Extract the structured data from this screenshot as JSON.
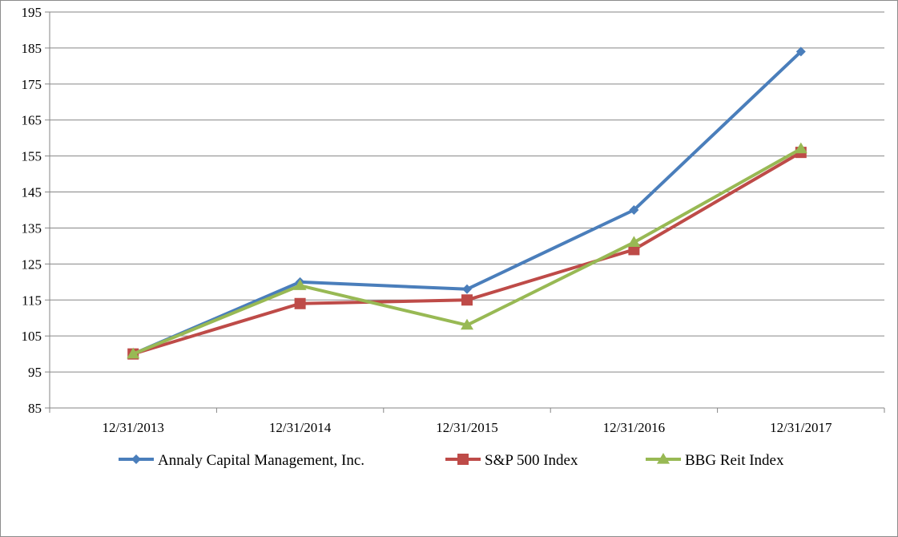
{
  "chart_data": {
    "type": "line",
    "title": "",
    "xlabel": "",
    "ylabel": "",
    "categories": [
      "12/31/2013",
      "12/31/2014",
      "12/31/2015",
      "12/31/2016",
      "12/31/2017"
    ],
    "ylim": [
      85,
      195
    ],
    "yticks": [
      85,
      95,
      105,
      115,
      125,
      135,
      145,
      155,
      165,
      175,
      185,
      195
    ],
    "ytick_labels": [
      "85",
      "95",
      "105",
      "115",
      "125",
      "135",
      "145",
      "155",
      "165",
      "175",
      "185",
      "195"
    ],
    "grid": "horizontal",
    "legend_position": "bottom",
    "series": [
      {
        "name": "Annaly Capital Management, Inc.",
        "values": [
          100,
          120,
          118,
          140,
          184
        ],
        "color": "#4a7ebb",
        "marker": "diamond"
      },
      {
        "name": "S&P 500 Index",
        "values": [
          100,
          114,
          115,
          129,
          156
        ],
        "color": "#be4b48",
        "marker": "square"
      },
      {
        "name": "BBG Reit Index",
        "values": [
          100,
          119,
          108,
          131,
          157
        ],
        "color": "#98b954",
        "marker": "triangle"
      }
    ]
  }
}
